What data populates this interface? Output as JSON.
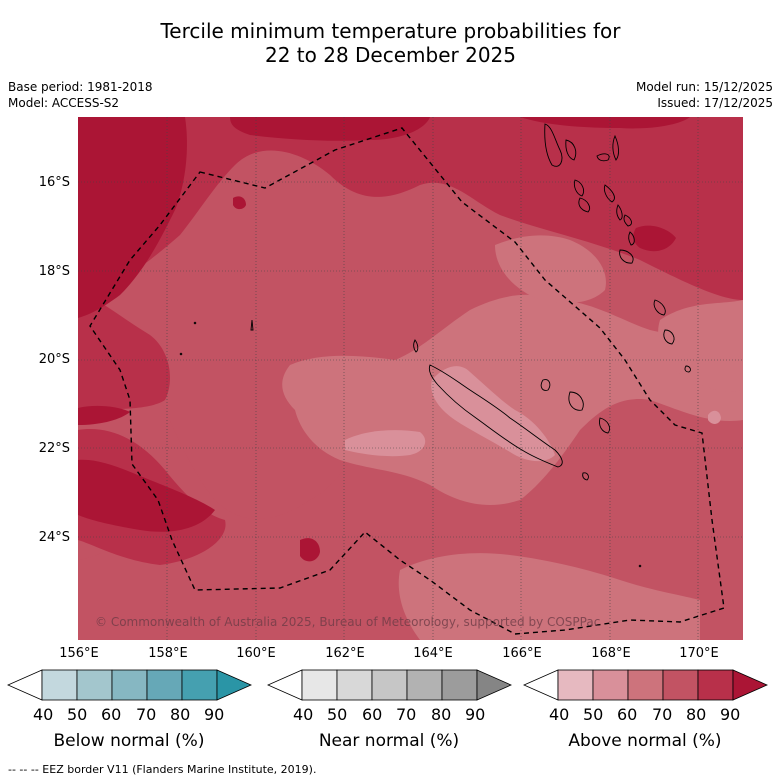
{
  "title_line1": "Tercile minimum temperature probabilities for",
  "title_line2": "22 to 28 December 2025",
  "base_period": "Base period: 1981-2018",
  "model": "Model: ACCESS-S2",
  "model_run": "Model run: 15/12/2025",
  "issued": "Issued: 17/12/2025",
  "lat_labels": [
    "16°S",
    "18°S",
    "20°S",
    "22°S",
    "24°S"
  ],
  "lon_labels": [
    "156°E",
    "158°E",
    "160°E",
    "162°E",
    "164°E",
    "166°E",
    "168°E",
    "170°E"
  ],
  "copyright": "© Commonwealth of Australia 2025, Bureau of Meteorology, supported by COSPPac",
  "legends": [
    {
      "name": "Below normal (%)",
      "ticks": [
        "40",
        "50",
        "60",
        "70",
        "80",
        "90"
      ],
      "colors": [
        "#ffffff",
        "#c3d8de",
        "#a3c6cd",
        "#86b7c2",
        "#66a8b7",
        "#45a0b0",
        "#2a95a6"
      ]
    },
    {
      "name": "Near normal (%)",
      "ticks": [
        "40",
        "50",
        "60",
        "70",
        "80",
        "90"
      ],
      "colors": [
        "#ffffff",
        "#e7e7e7",
        "#d8d8d8",
        "#c6c6c6",
        "#b2b2b2",
        "#9c9c9c",
        "#858585"
      ]
    },
    {
      "name": "Above normal (%)",
      "ticks": [
        "40",
        "50",
        "60",
        "70",
        "80",
        "90"
      ],
      "colors": [
        "#ffffff",
        "#e6b9c0",
        "#d9909a",
        "#cd737c",
        "#c25363",
        "#b8304a",
        "#ab1535"
      ]
    }
  ],
  "footnote": "-- -- -- EEZ border V11 (Flanders Marine Institute, 2019).",
  "colors": {
    "band50": "#e6b9c0",
    "band60": "#d9909a",
    "band70": "#cd737c",
    "band80": "#c25363",
    "band90": "#b8304a",
    "band100": "#ab1535"
  }
}
